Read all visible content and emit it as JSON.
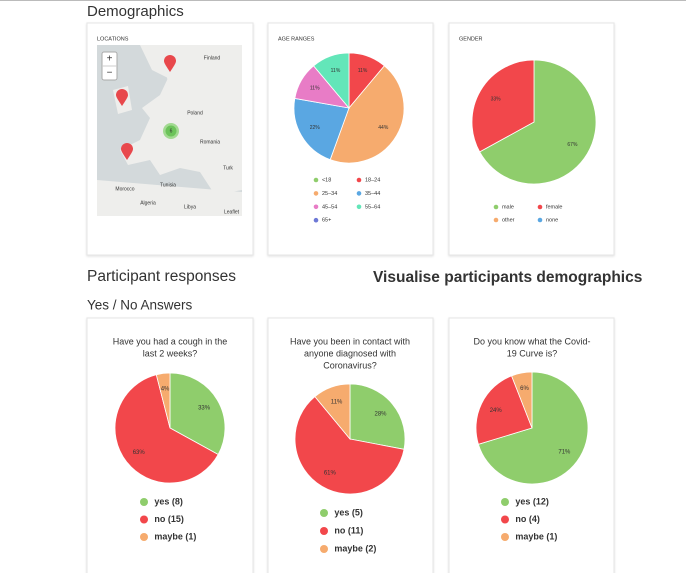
{
  "header": {
    "title": "Demographics"
  },
  "locations": {
    "title": "LOCATIONS",
    "zoom_in": "+",
    "zoom_out": "−",
    "cluster_count": "6",
    "attribution": "Leaflet",
    "place_labels": [
      "Finland",
      "Poland",
      "Romania",
      "Morocco",
      "Algeria",
      "Libya",
      "Tunisia",
      "Turk"
    ]
  },
  "demographic_charts": [
    {
      "type": "pie",
      "title": "AGE RANGES",
      "categories": [
        "<18",
        "18–24",
        "25–34",
        "35–44",
        "45–54",
        "55–64",
        "65+"
      ],
      "values": [
        0,
        11,
        44,
        22,
        11,
        11,
        0
      ],
      "value_labels": [
        null,
        "11%",
        "44%",
        "22%",
        "11%",
        "11%",
        null
      ],
      "colors": [
        "#8fcd6c",
        "#f2474b",
        "#f6ab6e",
        "#5aa7e2",
        "#e87cc6",
        "#63e6b9",
        "#6d78d6"
      ]
    },
    {
      "type": "pie",
      "title": "GENDER",
      "categories": [
        "male",
        "female",
        "other",
        "none"
      ],
      "values": [
        67,
        33,
        0,
        0
      ],
      "value_labels": [
        "67%",
        "33%",
        null,
        null
      ],
      "colors": [
        "#8fcd6c",
        "#f2474b",
        "#f6ab6e",
        "#5aa7e2"
      ]
    }
  ],
  "section_title": "Participant responses",
  "caption": "Visualise participants demographics",
  "subsection_title": "Yes / No Answers",
  "answer_charts": [
    {
      "type": "pie",
      "question_lines": [
        "Have you had a cough in the",
        "last 2 weeks?"
      ],
      "categories": [
        "yes (8)",
        "no (15)",
        "maybe (1)"
      ],
      "values": [
        33,
        63,
        4
      ],
      "value_labels": [
        "33%",
        "63%",
        "4%"
      ],
      "colors": [
        "#8fcd6c",
        "#f2474b",
        "#f6ab6e"
      ]
    },
    {
      "type": "pie",
      "question_lines": [
        "Have you been in contact with",
        "anyone diagnosed with",
        "Coronavirus?"
      ],
      "categories": [
        "yes (5)",
        "no (11)",
        "maybe (2)"
      ],
      "values": [
        28,
        61,
        11
      ],
      "value_labels": [
        "28%",
        "61%",
        "11%"
      ],
      "colors": [
        "#8fcd6c",
        "#f2474b",
        "#f6ab6e"
      ]
    },
    {
      "type": "pie",
      "question_lines": [
        "Do you know what the Covid-",
        "19 Curve is?"
      ],
      "categories": [
        "yes (12)",
        "no (4)",
        "maybe (1)"
      ],
      "values": [
        71,
        24,
        6
      ],
      "value_labels": [
        "71%",
        "24%",
        "6%"
      ],
      "colors": [
        "#8fcd6c",
        "#f2474b",
        "#f6ab6e"
      ]
    }
  ]
}
